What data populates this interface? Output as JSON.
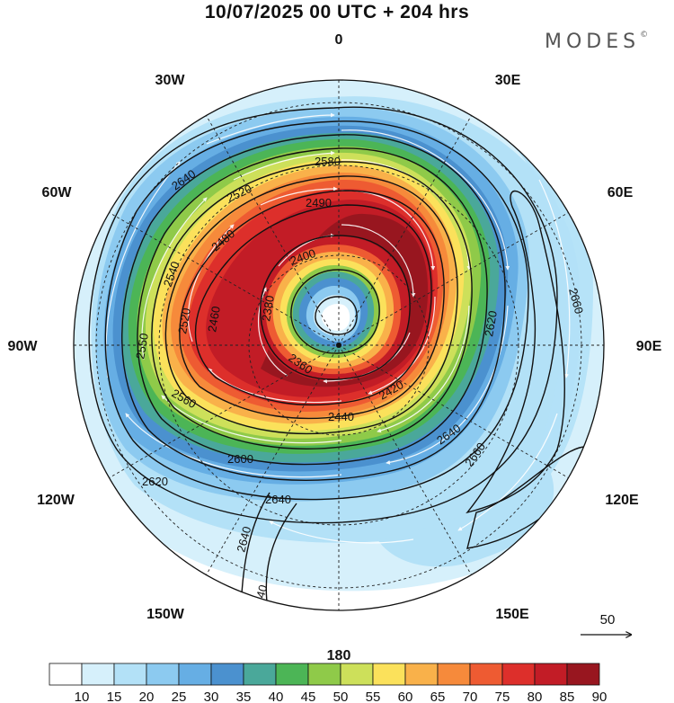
{
  "header": {
    "title": "10/07/2025  00 UTC  + 204 hrs",
    "brand": "MODES"
  },
  "meridian_labels": [
    "0",
    "30E",
    "60E",
    "90E",
    "120E",
    "150E",
    "180",
    "150W",
    "120W",
    "90W",
    "60W",
    "30W"
  ],
  "contours": {
    "labels": [
      "2640",
      "2580",
      "2520",
      "2490",
      "2480",
      "2400",
      "2460",
      "2540",
      "2520",
      "2550",
      "2620",
      "2660",
      "2380",
      "2360",
      "2420",
      "2440",
      "2560",
      "2600",
      "2640",
      "2620",
      "2640",
      "2660",
      "2640",
      "2640"
    ]
  },
  "wind_reference": {
    "value": "50"
  },
  "colorbar": {
    "labels": [
      "10",
      "15",
      "20",
      "25",
      "30",
      "35",
      "40",
      "45",
      "50",
      "55",
      "60",
      "65",
      "70",
      "75",
      "80",
      "85",
      "90"
    ],
    "colors": [
      "#ffffff",
      "#d6f0fb",
      "#b3e1f7",
      "#8ccaf0",
      "#66aee4",
      "#4b91cf",
      "#4aa89a",
      "#4cb556",
      "#8fca49",
      "#cde05a",
      "#fbe15b",
      "#f9b14a",
      "#f68a3b",
      "#ee5b32",
      "#dd2f2b",
      "#c21c26",
      "#98161f"
    ]
  }
}
